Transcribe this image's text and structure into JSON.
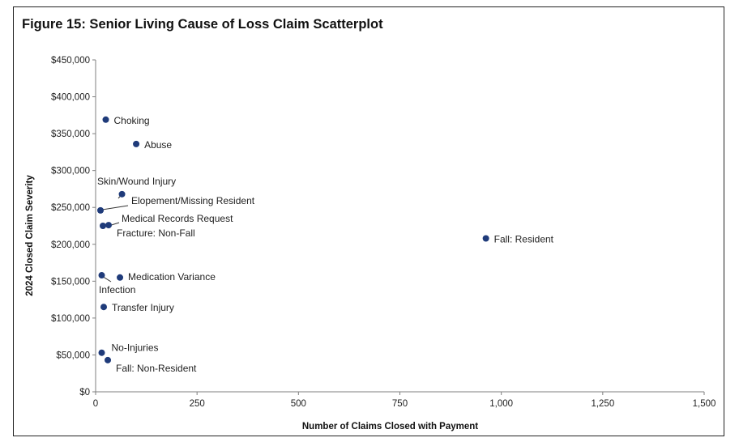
{
  "chart_data": {
    "type": "scatter",
    "title": "Figure 15: Senior Living Cause of Loss Claim Scatterplot",
    "xlabel": "Number of Claims Closed with Payment",
    "ylabel": "2024 Closed Claim Severity",
    "xlim": [
      0,
      1500
    ],
    "ylim": [
      0,
      450000
    ],
    "xticks": [
      0,
      250,
      500,
      750,
      1000,
      1250,
      1500
    ],
    "xtick_labels": [
      "0",
      "250",
      "500",
      "750",
      "1,000",
      "1,250",
      "1,500"
    ],
    "yticks": [
      0,
      50000,
      100000,
      150000,
      200000,
      250000,
      300000,
      350000,
      400000,
      450000
    ],
    "ytick_labels": [
      "$0",
      "$50,000",
      "$100,000",
      "$150,000",
      "$200,000",
      "$250,000",
      "$300,000",
      "$350,000",
      "$400,000",
      "$450,000"
    ],
    "grid": false,
    "marker_color": "#1f3b7a",
    "points": [
      {
        "label": "Choking",
        "x": 25,
        "y": 369000
      },
      {
        "label": "Abuse",
        "x": 100,
        "y": 336000
      },
      {
        "label": "Skin/Wound Injury",
        "x": 65,
        "y": 268000
      },
      {
        "label": "Elopement/Missing Resident",
        "x": 12,
        "y": 246000
      },
      {
        "label": "Medical Records Request",
        "x": 32,
        "y": 226000
      },
      {
        "label": "Fracture: Non-Fall",
        "x": 18,
        "y": 225000
      },
      {
        "label": "Fall: Resident",
        "x": 962,
        "y": 208000
      },
      {
        "label": "Medication Variance",
        "x": 60,
        "y": 155000
      },
      {
        "label": "Infection",
        "x": 15,
        "y": 158000
      },
      {
        "label": "Transfer Injury",
        "x": 20,
        "y": 115000
      },
      {
        "label": "No-Injuries",
        "x": 15,
        "y": 53000
      },
      {
        "label": "Fall: Non-Resident",
        "x": 30,
        "y": 43000
      }
    ]
  }
}
